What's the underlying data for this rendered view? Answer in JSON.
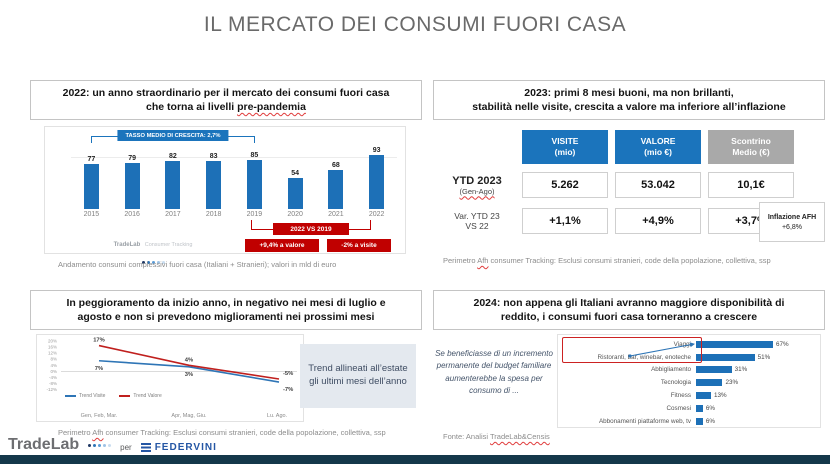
{
  "title": "IL MERCATO DEI CONSUMI FUORI CASA",
  "colors": {
    "bar_blue": "#1d70b7",
    "accent_blue": "#1b74bc",
    "red": "#c00000",
    "gray_header": "#a9a9a9",
    "navy_text": "#44546a",
    "footer_strip": "#14384a",
    "logo_dots": [
      "#1f3864",
      "#2e75b6",
      "#5b9bd5",
      "#9dc3e6",
      "#c9dcef"
    ]
  },
  "panel_2022": {
    "header_line1": "2022: un anno straordinario per il mercato dei consumi fuori casa",
    "header_line2_prefix": "che torna ai livelli ",
    "header_line2_wavy": "pre-pandemia",
    "growth_label": "TASSO MEDIO DI CRESCITA: 2,7%",
    "vs_badge": "2022 VS 2019",
    "badge_value": "+9,4% a valore",
    "badge_visits": "-2% a visite",
    "logo_main": "TradeLab",
    "logo_sub": "Consumer Tracking",
    "footnote": "Andamento consumi complessivi fuori casa (Italiani + Stranieri); valori in mld di euro"
  },
  "panel_2023": {
    "header_line1": "2023: primi 8 mesi buoni, ma non brillanti,",
    "header_line2": "stabilità nelle visite, crescita a valore ma inferiore all’inflazione",
    "table": {
      "columns": [
        {
          "title": "VISITE",
          "sub": "(mio)"
        },
        {
          "title": "VALORE",
          "sub": "(mio €)"
        },
        {
          "title": "Scontrino",
          "sub": "Medio (€)"
        }
      ],
      "row1": {
        "label": "YTD 2023",
        "sublabel": "(Gen-Ago)",
        "visite": "5.262",
        "valore": "53.042",
        "scontrino": "10,1€"
      },
      "row2": {
        "label": "Var. YTD 23",
        "sublabel": "VS 22",
        "visite": "+1,1%",
        "valore": "+4,9%",
        "scontrino": "+3,7%"
      }
    },
    "inflation_label": "Inflazione AFH",
    "inflation_value": "+6,8%",
    "footnote_prefix": "Perimetro ",
    "footnote_wavy": "Afh",
    "footnote_suffix": " consumer Tracking: Esclusi consumi stranieri, code della popolazione, collettiva, ssp"
  },
  "panel_trend": {
    "header_line1": "In peggioramento da inizio anno, in negativo nei mesi di luglio e",
    "header_line2": "agosto e non si prevedono miglioramenti nei prossimi mesi",
    "note_box": "Trend allineati all’estate gli ultimi mesi dell’anno",
    "footnote_prefix": "Perimetro ",
    "footnote_wavy": "Afh",
    "footnote_suffix": " consumer Tracking: Esclusi consumi stranieri, code della popolazione, collettiva, ssp"
  },
  "panel_2024": {
    "header_line1": "2024: non appena gli Italiani avranno maggiore disponibilità di",
    "header_line2": "reddito, i consumi fuori casa torneranno a crescere",
    "side_note": "Se beneficiasse di un incremento permanente del budget familiare aumenterebbe la spesa per consumo di ...",
    "footnote_prefix": "Fonte: Analisi ",
    "footnote_wavy": "TradeLab&Censis"
  },
  "footer": {
    "brand": "TradeLab",
    "per": "per",
    "partner": "FEDERVINI"
  },
  "chart_data": [
    {
      "id": "consumi_fuori_casa",
      "type": "bar",
      "title": "Andamento consumi complessivi fuori casa (Italiani + Stranieri); valori in mld di euro",
      "categories": [
        "2015",
        "2016",
        "2017",
        "2018",
        "2019",
        "2020",
        "2021",
        "2022"
      ],
      "values": [
        77,
        79,
        82,
        83,
        85,
        54,
        68,
        93
      ],
      "ylim": [
        0,
        100
      ],
      "bar_color": "#1d70b7",
      "annotations": [
        "TASSO MEDIO DI CRESCITA: 2,7% (2015-2019)",
        "2022 VS 2019: +9,4% a valore, -2% a visite"
      ]
    },
    {
      "id": "trend_2023",
      "type": "line",
      "categories": [
        "Gen, Feb, Mar.",
        "Apr, Mag, Giu.",
        "Lu. Ago."
      ],
      "series": [
        {
          "name": "Trend Visite",
          "color": "#2e75b6",
          "values": [
            7,
            3,
            -7
          ]
        },
        {
          "name": "Trend Valore",
          "color": "#c0201e",
          "values": [
            17,
            4,
            -5
          ]
        }
      ],
      "ylim": [
        -12,
        20
      ],
      "ytick_step": 4,
      "grid": "zero-line-only",
      "legend_position": "bottom-left"
    },
    {
      "id": "intenzioni_spesa_2024",
      "type": "bar",
      "orientation": "horizontal",
      "categories": [
        "Viaggi",
        "Ristoranti, bar, winebar, enoteche",
        "Abbigliamento",
        "Tecnologia",
        "Fitness",
        "Cosmesi",
        "Abbonamenti piattaforme web, tv"
      ],
      "values": [
        67,
        51,
        31,
        23,
        13,
        6,
        6
      ],
      "xlim": [
        0,
        100
      ],
      "bar_color": "#1d70b7",
      "highlight": [
        "Viaggi",
        "Ristoranti, bar, winebar, enoteche"
      ]
    }
  ]
}
